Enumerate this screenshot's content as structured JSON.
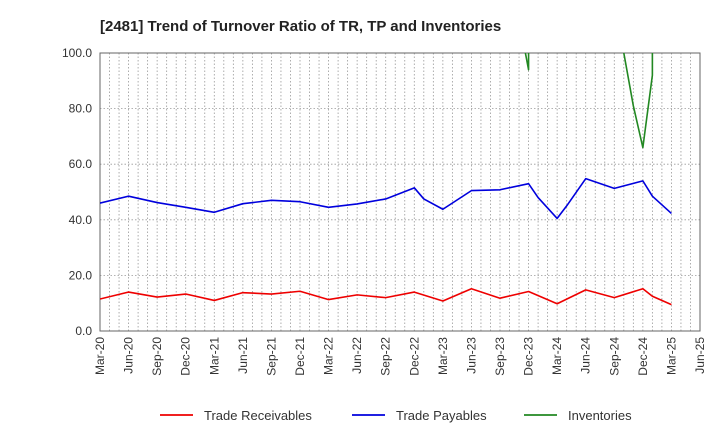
{
  "chart_data": {
    "type": "line",
    "title": "[2481]  Trend of Turnover Ratio of TR, TP and Inventories",
    "xlabel": "",
    "ylabel": "",
    "ylim": [
      0,
      100
    ],
    "yticks": [
      "0.0",
      "20.0",
      "40.0",
      "60.0",
      "80.0",
      "100.0"
    ],
    "xticks": [
      "Mar-20",
      "Jun-20",
      "Sep-20",
      "Dec-20",
      "Mar-21",
      "Jun-21",
      "Sep-21",
      "Dec-21",
      "Mar-22",
      "Jun-22",
      "Sep-22",
      "Dec-22",
      "Mar-23",
      "Jun-23",
      "Sep-23",
      "Dec-23",
      "Mar-24",
      "Jun-24",
      "Sep-24",
      "Dec-24",
      "Mar-25",
      "Jun-25"
    ],
    "grid": true,
    "legend_position": "bottom",
    "x": [
      "Mar-20",
      "Apr-20",
      "May-20",
      "Jun-20",
      "Jul-20",
      "Aug-20",
      "Sep-20",
      "Oct-20",
      "Nov-20",
      "Dec-20",
      "Jan-21",
      "Feb-21",
      "Mar-21",
      "Apr-21",
      "May-21",
      "Jun-21",
      "Jul-21",
      "Aug-21",
      "Sep-21",
      "Oct-21",
      "Nov-21",
      "Dec-21",
      "Jan-22",
      "Feb-22",
      "Mar-22",
      "Apr-22",
      "May-22",
      "Jun-22",
      "Jul-22",
      "Aug-22",
      "Sep-22",
      "Oct-22",
      "Nov-22",
      "Dec-22",
      "Jan-23",
      "Feb-23",
      "Mar-23",
      "Apr-23",
      "May-23",
      "Jun-23",
      "Jul-23",
      "Aug-23",
      "Sep-23",
      "Oct-23",
      "Nov-23",
      "Dec-23",
      "Jan-24",
      "Feb-24",
      "Mar-24",
      "Apr-24",
      "May-24",
      "Jun-24",
      "Jul-24",
      "Aug-24",
      "Sep-24",
      "Oct-24",
      "Nov-24",
      "Dec-24",
      "Jan-25",
      "Feb-25",
      "Mar-25",
      "Apr-25",
      "May-25",
      "Jun-25"
    ],
    "series": [
      {
        "name": "Trade Receivables",
        "color": "#ee0000",
        "points": [
          [
            "Mar-20",
            11.5
          ],
          [
            "Jun-20",
            14.0
          ],
          [
            "Sep-20",
            12.2
          ],
          [
            "Dec-20",
            13.3
          ],
          [
            "Mar-21",
            11.0
          ],
          [
            "Jun-21",
            13.8
          ],
          [
            "Sep-21",
            13.3
          ],
          [
            "Dec-21",
            14.3
          ],
          [
            "Mar-22",
            11.3
          ],
          [
            "Jun-22",
            13.0
          ],
          [
            "Sep-22",
            12.0
          ],
          [
            "Dec-22",
            14.0
          ],
          [
            "Mar-23",
            10.8
          ],
          [
            "Jun-23",
            15.2
          ],
          [
            "Sep-23",
            11.8
          ],
          [
            "Dec-23",
            14.2
          ],
          [
            "Mar-24",
            9.8
          ],
          [
            "Jun-24",
            14.8
          ],
          [
            "Sep-24",
            12.0
          ],
          [
            "Dec-24",
            15.2
          ],
          [
            "Jan-25",
            12.5
          ],
          [
            "Mar-25",
            9.5
          ]
        ]
      },
      {
        "name": "Trade Payables",
        "color": "#0000dd",
        "points": [
          [
            "Mar-20",
            46.0
          ],
          [
            "Jun-20",
            48.5
          ],
          [
            "Sep-20",
            46.2
          ],
          [
            "Dec-20",
            44.5
          ],
          [
            "Mar-21",
            42.7
          ],
          [
            "Jun-21",
            45.8
          ],
          [
            "Sep-21",
            47.0
          ],
          [
            "Dec-21",
            46.5
          ],
          [
            "Mar-22",
            44.5
          ],
          [
            "Jun-22",
            45.7
          ],
          [
            "Sep-22",
            47.5
          ],
          [
            "Dec-22",
            51.5
          ],
          [
            "Jan-23",
            47.5
          ],
          [
            "Mar-23",
            43.8
          ],
          [
            "Jun-23",
            50.5
          ],
          [
            "Sep-23",
            50.8
          ],
          [
            "Dec-23",
            53.0
          ],
          [
            "Jan-24",
            48.0
          ],
          [
            "Mar-24",
            40.5
          ],
          [
            "Apr-24",
            45.0
          ],
          [
            "Jun-24",
            54.8
          ],
          [
            "Sep-24",
            51.3
          ],
          [
            "Dec-24",
            54.0
          ],
          [
            "Jan-25",
            48.5
          ],
          [
            "Mar-25",
            42.3
          ]
        ]
      },
      {
        "name": "Inventories",
        "color": "#228822",
        "segments": [
          [
            [
              "Nov-23",
              112.0
            ],
            [
              "Dec-23",
              94.0
            ],
            [
              "Dec-23",
              112.0
            ]
          ],
          [
            [
              "Sep-24",
              108.0
            ],
            [
              "Oct-24",
              100.0
            ],
            [
              "Nov-24",
              81.0
            ],
            [
              "Dec-24",
              66.0
            ],
            [
              "Jan-25",
              92.0
            ],
            [
              "Jan-25",
              112.0
            ]
          ]
        ]
      }
    ]
  }
}
